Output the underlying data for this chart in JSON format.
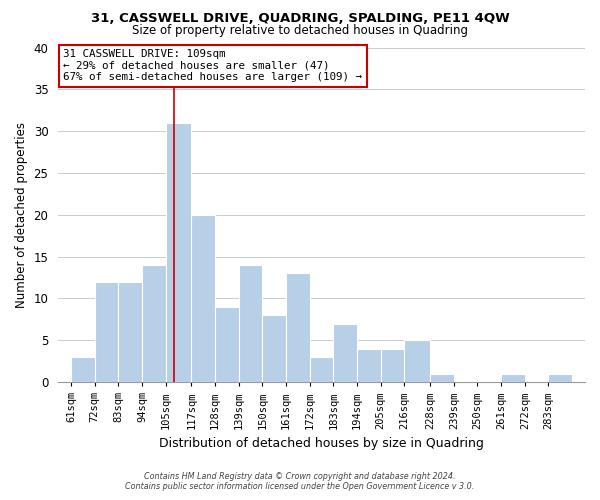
{
  "title1": "31, CASSWELL DRIVE, QUADRING, SPALDING, PE11 4QW",
  "title2": "Size of property relative to detached houses in Quadring",
  "xlabel": "Distribution of detached houses by size in Quadring",
  "ylabel": "Number of detached properties",
  "bar_left_edges": [
    61,
    72,
    83,
    94,
    105,
    117,
    128,
    139,
    150,
    161,
    172,
    183,
    194,
    205,
    216,
    228,
    239,
    250,
    261,
    272,
    283
  ],
  "bar_widths": [
    11,
    11,
    11,
    11,
    12,
    11,
    11,
    11,
    11,
    11,
    11,
    11,
    11,
    11,
    12,
    11,
    11,
    11,
    11,
    11,
    11
  ],
  "bar_heights": [
    3,
    12,
    12,
    14,
    31,
    20,
    9,
    14,
    8,
    13,
    3,
    7,
    4,
    4,
    5,
    1,
    0,
    0,
    1,
    0,
    1
  ],
  "bar_color": "#b8cfe8",
  "bar_edgecolor": "#ffffff",
  "red_line_x": 109,
  "ylim": [
    0,
    40
  ],
  "yticks": [
    0,
    5,
    10,
    15,
    20,
    25,
    30,
    35,
    40
  ],
  "xtick_labels": [
    "61sqm",
    "72sqm",
    "83sqm",
    "94sqm",
    "105sqm",
    "117sqm",
    "128sqm",
    "139sqm",
    "150sqm",
    "161sqm",
    "172sqm",
    "183sqm",
    "194sqm",
    "205sqm",
    "216sqm",
    "228sqm",
    "239sqm",
    "250sqm",
    "261sqm",
    "272sqm",
    "283sqm"
  ],
  "xtick_positions": [
    61,
    72,
    83,
    94,
    105,
    117,
    128,
    139,
    150,
    161,
    172,
    183,
    194,
    205,
    216,
    228,
    239,
    250,
    261,
    272,
    283
  ],
  "annotation_line1": "31 CASSWELL DRIVE: 109sqm",
  "annotation_line2": "← 29% of detached houses are smaller (47)",
  "annotation_line3": "67% of semi-detached houses are larger (109) →",
  "annotation_box_color": "#ffffff",
  "annotation_box_edgecolor": "#cc0000",
  "grid_color": "#cccccc",
  "bg_color": "#ffffff",
  "footer1": "Contains HM Land Registry data © Crown copyright and database right 2024.",
  "footer2": "Contains public sector information licensed under the Open Government Licence v 3.0."
}
